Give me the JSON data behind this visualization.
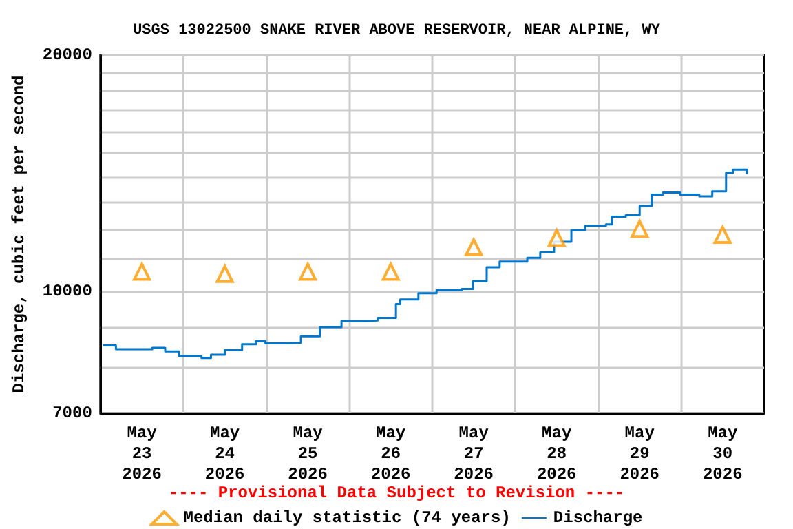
{
  "chart_data": {
    "type": "step",
    "title": "USGS 13022500 SNAKE RIVER ABOVE RESERVOIR, NEAR ALPINE, WY",
    "ylabel": "Discharge, cubic feet per second",
    "annotations": [
      "---- Provisional Data Subject to Revision ----"
    ],
    "log": "y",
    "grid": true,
    "legend": "bottom",
    "xlim": [
      "2026-05-23T00:00",
      "2026-05-31T00:00"
    ],
    "xticks": [
      {
        "value": "2026-05-23T12:00",
        "label": "May\n23\n2026"
      },
      {
        "value": "2026-05-24T00:00",
        "label": null
      },
      {
        "value": "2026-05-24T12:00",
        "label": "May\n24\n2026"
      },
      {
        "value": "2026-05-25T00:00",
        "label": null
      },
      {
        "value": "2026-05-25T12:00",
        "label": "May\n25\n2026"
      },
      {
        "value": "2026-05-26T00:00",
        "label": null
      },
      {
        "value": "2026-05-26T12:00",
        "label": "May\n26\n2026"
      },
      {
        "value": "2026-05-27T00:00",
        "label": null
      },
      {
        "value": "2026-05-27T12:00",
        "label": "May\n27\n2026"
      },
      {
        "value": "2026-05-28T00:00",
        "label": null
      },
      {
        "value": "2026-05-28T12:00",
        "label": "May\n28\n2026"
      },
      {
        "value": "2026-05-29T00:00",
        "label": null
      },
      {
        "value": "2026-05-29T12:00",
        "label": "May\n29\n2026"
      },
      {
        "value": "2026-05-30T00:00",
        "label": null
      },
      {
        "value": "2026-05-30T12:00",
        "label": "May\n30\n2026"
      }
    ],
    "ylim": [
      7000,
      20000
    ],
    "yticks": [
      7000,
      {
        "value": 8000,
        "label": null
      },
      {
        "value": 9000,
        "label": null
      },
      10000,
      {
        "value": 11000,
        "label": null
      },
      {
        "value": 12000,
        "label": null
      },
      {
        "value": 13000,
        "label": null
      },
      {
        "value": 14000,
        "label": null
      },
      {
        "value": 15000,
        "label": null
      },
      {
        "value": 16000,
        "label": null
      },
      {
        "value": 17000,
        "label": null
      },
      {
        "value": 18000,
        "label": null
      },
      {
        "value": 19000,
        "label": null
      },
      20000
    ],
    "series": [
      {
        "name": "Median daily statistic (74 years)",
        "type": "scatter",
        "marker": "triangle",
        "color": "#ff9900",
        "x": [
          "2026-05-23T12:00",
          "2026-05-24T12:00",
          "2026-05-25T12:00",
          "2026-05-26T12:00",
          "2026-05-27T12:00",
          "2026-05-28T12:00",
          "2026-05-29T12:00",
          "2026-05-30T12:00"
        ],
        "values": [
          10600,
          10530,
          10600,
          10600,
          11390,
          11700,
          12020,
          11810
        ]
      },
      {
        "name": "Discharge",
        "marker": "none",
        "color": "#0077cc",
        "x": [
          "2026-05-23T00:45",
          "2026-05-23T04:30",
          "2026-05-23T15:00",
          "2026-05-23T18:45",
          "2026-05-23T22:45",
          "2026-05-24T05:15",
          "2026-05-24T08:00",
          "2026-05-24T12:00",
          "2026-05-24T17:00",
          "2026-05-24T21:00",
          "2026-05-24T23:45",
          "2026-05-25T06:00",
          "2026-05-25T10:00",
          "2026-05-25T15:30",
          "2026-05-25T21:45",
          "2026-05-26T04:30",
          "2026-05-26T08:15",
          "2026-05-26T13:30",
          "2026-05-26T14:45",
          "2026-05-26T20:00",
          "2026-05-27T01:15",
          "2026-05-27T08:30",
          "2026-05-27T11:45",
          "2026-05-27T15:45",
          "2026-05-27T19:30",
          "2026-05-28T03:30",
          "2026-05-28T07:15",
          "2026-05-28T11:15",
          "2026-05-28T16:15",
          "2026-05-28T20:15",
          "2026-05-29T02:15",
          "2026-05-29T04:00",
          "2026-05-29T08:00",
          "2026-05-29T12:00",
          "2026-05-29T15:30",
          "2026-05-29T18:45",
          "2026-05-29T23:45",
          "2026-05-30T05:15",
          "2026-05-30T09:00",
          "2026-05-30T13:00",
          "2026-05-30T15:00",
          "2026-05-30T19:00"
        ],
        "values": [
          8540,
          8445,
          8480,
          8390,
          8275,
          8230,
          8310,
          8425,
          8570,
          8650,
          8590,
          8610,
          8770,
          9010,
          9170,
          9190,
          9260,
          9640,
          9770,
          9950,
          10040,
          10080,
          10310,
          10740,
          10920,
          11040,
          11220,
          11570,
          11970,
          12130,
          12180,
          12460,
          12510,
          12850,
          13290,
          13370,
          13290,
          13220,
          13420,
          14170,
          14300,
          14110
        ]
      }
    ]
  }
}
